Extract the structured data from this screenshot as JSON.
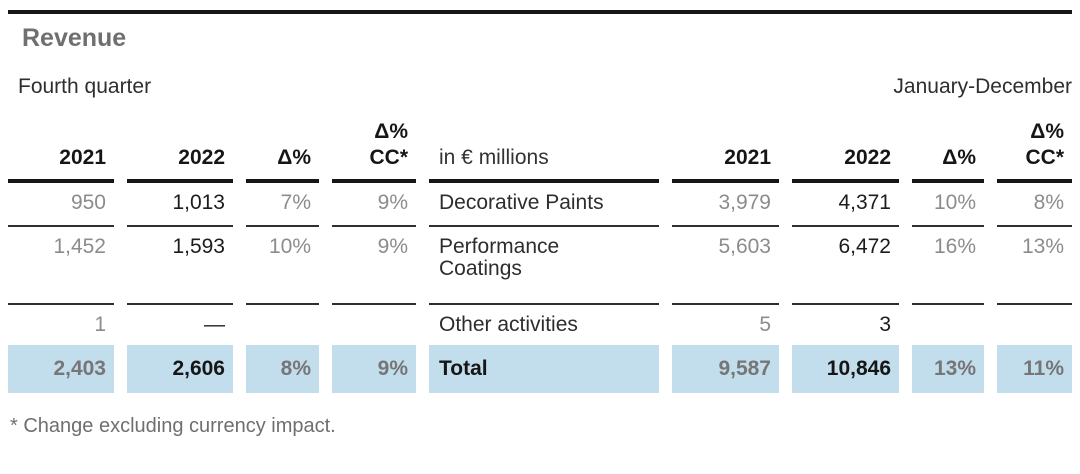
{
  "title": "Revenue",
  "periods": {
    "left": "Fourth quarter",
    "right": "January-December"
  },
  "table": {
    "unit_label": "in € millions",
    "header": {
      "year1": "2021",
      "year2": "2022",
      "delta": "Δ%",
      "cc_line1": "Δ%",
      "cc_line2": "CC*"
    },
    "rows": [
      {
        "label": "Decorative Paints",
        "q": [
          "950",
          "1,013",
          "7%",
          "9%"
        ],
        "y": [
          "3,979",
          "4,371",
          "10%",
          "8%"
        ]
      },
      {
        "label": "Performance Coatings",
        "q": [
          "1,452",
          "1,593",
          "10%",
          "9%"
        ],
        "y": [
          "5,603",
          "6,472",
          "16%",
          "13%"
        ]
      },
      {
        "label": "Other activities",
        "q": [
          "1",
          "—",
          "",
          ""
        ],
        "y": [
          "5",
          "3",
          "",
          ""
        ]
      }
    ],
    "total": {
      "label": "Total",
      "q": [
        "2,403",
        "2,606",
        "8%",
        "9%"
      ],
      "y": [
        "9,587",
        "10,846",
        "13%",
        "11%"
      ]
    }
  },
  "footnote": "* Change excluding currency impact.",
  "colors": {
    "highlight_blue": "#c2ddec",
    "rule_black": "#161616",
    "muted_gray": "#8c8c8c",
    "title_gray": "#6f6f6f"
  },
  "chart_data": {
    "type": "table",
    "title": "Revenue",
    "unit": "in € millions",
    "column_groups": [
      "Fourth quarter",
      "January-December"
    ],
    "columns_per_group": [
      "2021",
      "2022",
      "Δ%",
      "Δ% CC*"
    ],
    "rows": [
      {
        "label": "Decorative Paints",
        "fourth_quarter": {
          "2021": 950,
          "2022": 1013,
          "delta_pct": "7%",
          "delta_pct_cc": "9%"
        },
        "january_december": {
          "2021": 3979,
          "2022": 4371,
          "delta_pct": "10%",
          "delta_pct_cc": "8%"
        }
      },
      {
        "label": "Performance Coatings",
        "fourth_quarter": {
          "2021": 1452,
          "2022": 1593,
          "delta_pct": "10%",
          "delta_pct_cc": "9%"
        },
        "january_december": {
          "2021": 5603,
          "2022": 6472,
          "delta_pct": "16%",
          "delta_pct_cc": "13%"
        }
      },
      {
        "label": "Other activities",
        "fourth_quarter": {
          "2021": 1,
          "2022": null,
          "delta_pct": "",
          "delta_pct_cc": ""
        },
        "january_december": {
          "2021": 5,
          "2022": 3,
          "delta_pct": "",
          "delta_pct_cc": ""
        }
      },
      {
        "label": "Total",
        "is_total": true,
        "fourth_quarter": {
          "2021": 2403,
          "2022": 2606,
          "delta_pct": "8%",
          "delta_pct_cc": "9%"
        },
        "january_december": {
          "2021": 9587,
          "2022": 10846,
          "delta_pct": "13%",
          "delta_pct_cc": "11%"
        }
      }
    ],
    "footnote": "* Change excluding currency impact."
  }
}
